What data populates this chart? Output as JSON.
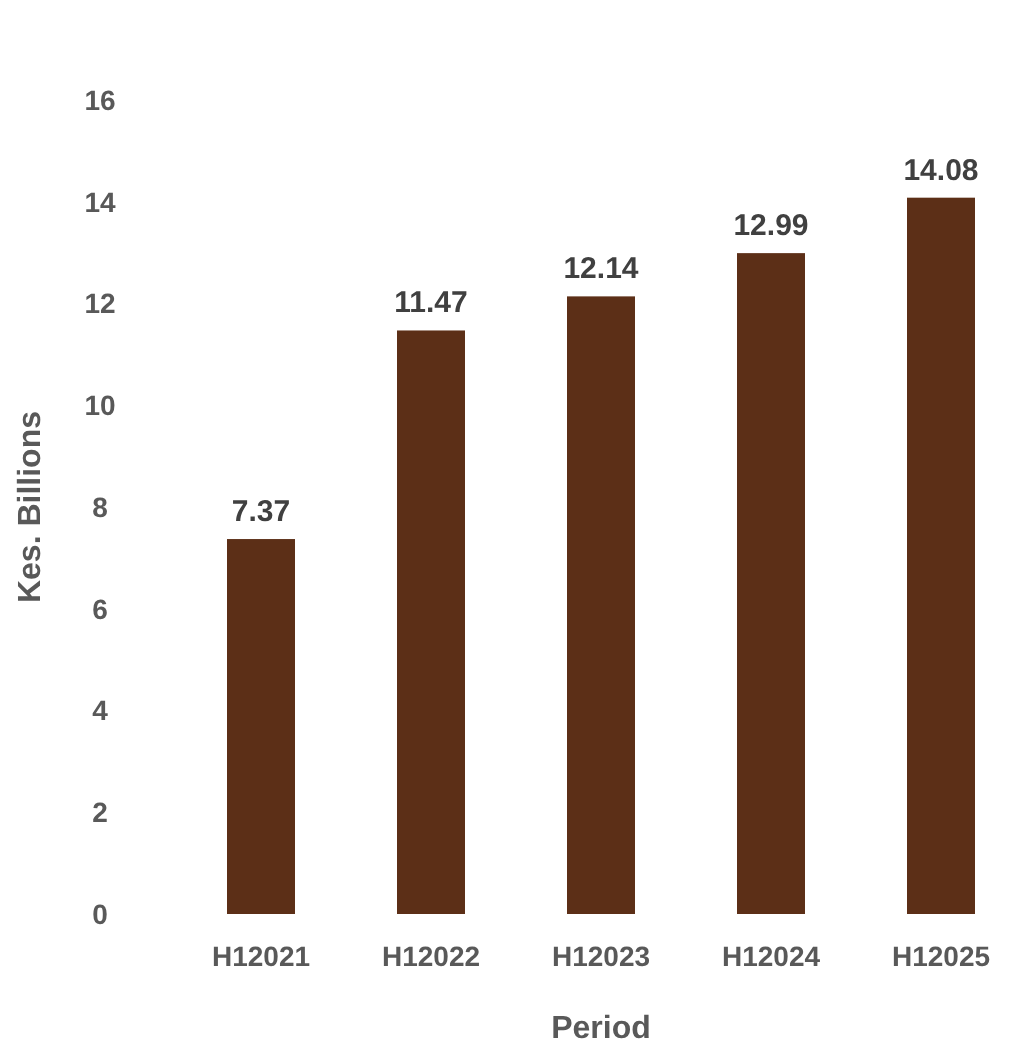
{
  "chart_data": {
    "type": "bar",
    "xlabel": "Period",
    "ylabel": "Kes. Billions",
    "categories": [
      "H12021",
      "H12022",
      "H12023",
      "H12024",
      "H12025"
    ],
    "values": [
      7.37,
      11.47,
      12.14,
      12.99,
      14.08
    ],
    "color": "#5c2f17",
    "ylim": [
      0,
      16
    ],
    "yticks": [
      0,
      2,
      4,
      6,
      8,
      10,
      12,
      14,
      16
    ],
    "data_labels": true
  }
}
